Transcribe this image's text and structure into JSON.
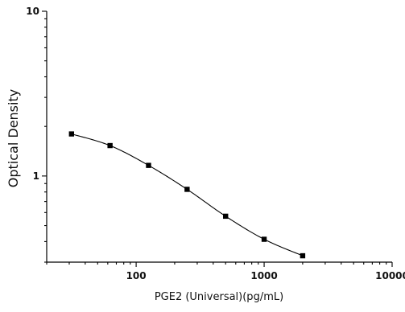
{
  "chart_data": {
    "type": "line",
    "title": "",
    "xlabel": "PGE2 (Universal)(pg/mL)",
    "ylabel": "Optical Density",
    "x_scale": "log",
    "y_scale": "log",
    "xlim": [
      20,
      10000
    ],
    "ylim": [
      0.3,
      10
    ],
    "x_ticks": [
      100,
      1000,
      10000
    ],
    "x_tick_labels": [
      "100",
      "1000",
      "10000"
    ],
    "y_ticks": [
      1,
      10
    ],
    "y_tick_labels": [
      "1",
      "10"
    ],
    "grid": false,
    "legend": "none",
    "line_color": "#000000",
    "marker": "square",
    "series": [
      {
        "x": [
          31.25,
          62.5,
          125,
          250,
          500,
          1000,
          2000
        ],
        "y": [
          1.8,
          1.53,
          1.16,
          0.83,
          0.57,
          0.413,
          0.328
        ]
      }
    ]
  }
}
